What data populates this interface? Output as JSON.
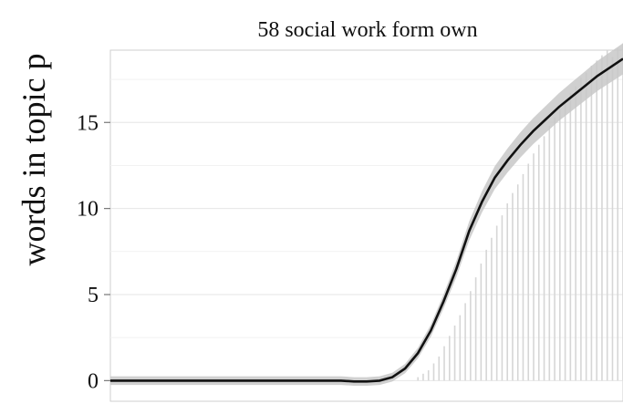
{
  "chart_data": {
    "type": "line",
    "title": "58 social work form own",
    "ylabel": "words in topic p",
    "xlabel": "",
    "ylim": [
      -1.2,
      19.2
    ],
    "yticks": [
      0,
      5,
      10,
      15
    ],
    "grid": true,
    "x_domain": [
      0,
      100
    ],
    "series": [
      {
        "role": "smoothed-mean",
        "x": [
          0,
          10,
          20,
          30,
          40,
          45,
          47.5,
          50,
          52.5,
          55,
          57.5,
          60,
          62.5,
          65,
          67.5,
          70,
          72.5,
          75,
          77.5,
          80,
          82.5,
          85,
          87.5,
          90,
          92.5,
          95,
          97.5,
          100
        ],
        "values": [
          0,
          0,
          0,
          0,
          0,
          0,
          -0.05,
          -0.05,
          0,
          0.2,
          0.7,
          1.6,
          2.9,
          4.6,
          6.5,
          8.7,
          10.4,
          11.8,
          12.8,
          13.7,
          14.5,
          15.2,
          15.9,
          16.5,
          17.1,
          17.7,
          18.2,
          18.7
        ]
      }
    ],
    "bars": {
      "x_start": 60,
      "x_end": 100,
      "approx_values": [
        0.2,
        0.4,
        0.6,
        1.0,
        1.4,
        2.0,
        2.6,
        3.2,
        3.8,
        4.5,
        5.2,
        6.0,
        6.8,
        7.6,
        8.3,
        9.0,
        9.6,
        10.3,
        10.9,
        11.4,
        12.0,
        12.6,
        13.2,
        13.7,
        14.2,
        14.8,
        15.3,
        15.8,
        16.2,
        16.7,
        17.1,
        17.6,
        17.9,
        18.3,
        18.6,
        18.9,
        19.2,
        18.8,
        19.3,
        19.6
      ]
    },
    "colors": {
      "line": "#111111",
      "ribbon": "#c8c8c8",
      "bars": "#d6d6d6",
      "grid": "#ececec",
      "axis": "#999999"
    }
  }
}
